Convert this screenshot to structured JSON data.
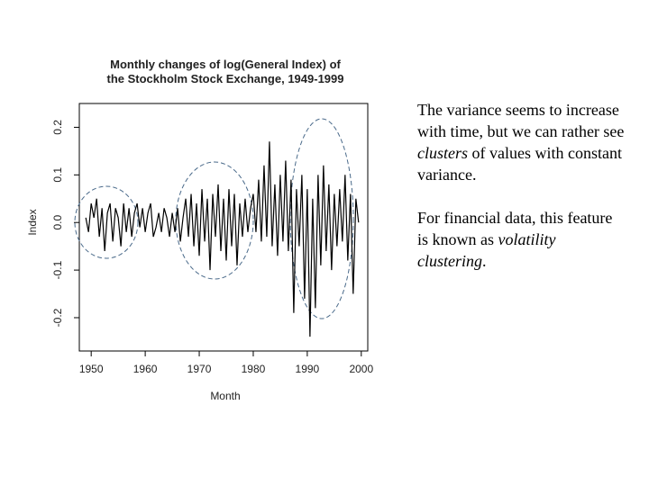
{
  "chart_data": {
    "type": "line",
    "title": [
      "Monthly changes of log(General Index) of",
      "the Stockholm Stock Exchange, 1949-1999"
    ],
    "x_label": "Month",
    "y_label": "Index",
    "color": "#000000",
    "xlim": [
      1947.8,
      2001.2
    ],
    "xticks": [
      1950,
      1960,
      1970,
      1980,
      1990,
      2000
    ],
    "ylim": [
      -0.27,
      0.25
    ],
    "yticks": [
      0.2,
      0.1,
      {
        "value": 0,
        "label": "0.0"
      },
      -0.1,
      -0.2
    ],
    "x": [
      1949,
      1949.5,
      1950,
      1950.5,
      1951,
      1951.5,
      1952,
      1952.5,
      1953,
      1953.5,
      1954,
      1954.5,
      1955,
      1955.5,
      1956,
      1956.5,
      1957,
      1957.5,
      1958,
      1958.5,
      1959,
      1959.5,
      1960,
      1960.5,
      1961,
      1961.5,
      1962,
      1962.5,
      1963,
      1963.5,
      1964,
      1964.5,
      1965,
      1965.5,
      1966,
      1966.5,
      1967,
      1967.5,
      1968,
      1968.5,
      1969,
      1969.5,
      1970,
      1970.5,
      1971,
      1971.5,
      1972,
      1972.5,
      1973,
      1973.5,
      1974,
      1974.5,
      1975,
      1975.5,
      1976,
      1976.5,
      1977,
      1977.5,
      1978,
      1978.5,
      1979,
      1979.5,
      1980,
      1980.5,
      1981,
      1981.5,
      1982,
      1982.5,
      1983,
      1983.5,
      1984,
      1984.5,
      1985,
      1985.5,
      1986,
      1986.5,
      1987,
      1987.5,
      1988,
      1988.5,
      1989,
      1989.5,
      1990,
      1990.5,
      1991,
      1991.5,
      1992,
      1992.5,
      1993,
      1993.5,
      1994,
      1994.5,
      1995,
      1995.5,
      1996,
      1996.5,
      1997,
      1997.5,
      1998,
      1998.5,
      1999,
      1999.5
    ],
    "values": [
      0.01,
      -0.02,
      0.04,
      0.01,
      0.05,
      -0.03,
      0.03,
      -0.06,
      0.02,
      0.04,
      -0.04,
      0.03,
      0.01,
      -0.05,
      0.04,
      -0.02,
      0.03,
      -0.03,
      0.02,
      0.04,
      -0.01,
      0.03,
      -0.02,
      0.02,
      0.04,
      -0.03,
      -0.01,
      0.02,
      -0.02,
      0.03,
      0.01,
      -0.03,
      0.02,
      -0.02,
      0.03,
      -0.04,
      0.01,
      0.05,
      -0.03,
      0.06,
      -0.05,
      0.04,
      -0.07,
      0.07,
      -0.04,
      0.05,
      -0.1,
      0.06,
      -0.03,
      0.08,
      -0.06,
      0.05,
      -0.08,
      0.07,
      -0.05,
      0.06,
      -0.09,
      0.04,
      -0.03,
      0.05,
      -0.02,
      0.03,
      0.06,
      -0.02,
      0.09,
      -0.04,
      0.12,
      -0.03,
      0.17,
      -0.05,
      0.08,
      -0.07,
      0.1,
      -0.04,
      0.13,
      -0.06,
      0.09,
      -0.19,
      0.07,
      -0.05,
      0.1,
      -0.16,
      0.07,
      -0.24,
      0.05,
      -0.18,
      0.1,
      -0.09,
      0.12,
      -0.06,
      0.08,
      -0.1,
      0.06,
      -0.05,
      0.07,
      -0.04,
      0.1,
      -0.08,
      0.06,
      -0.15,
      0.05,
      0
    ]
  },
  "text": {
    "paragraphs": [
      [
        "The variance seems to increase with time, but we can rather see ",
        "clusters",
        " of values with constant variance."
      ],
      [
        "For financial data, this feature is known as ",
        "volatility clustering",
        "."
      ]
    ]
  }
}
